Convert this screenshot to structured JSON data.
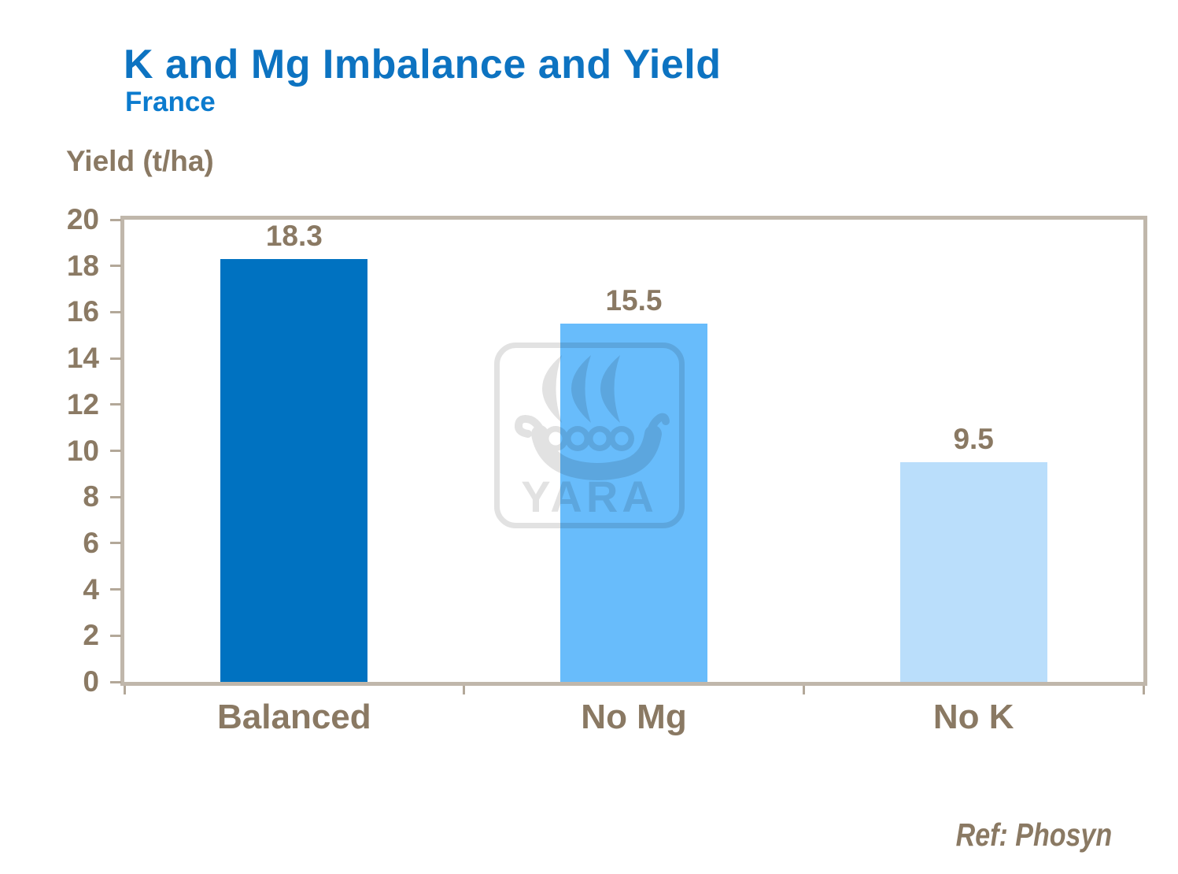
{
  "slide": {
    "title": "K and Mg Imbalance and Yield",
    "subtitle": "France",
    "ref_note": "Ref: Phosyn",
    "watermark_text": "YARA"
  },
  "chart_data": {
    "type": "bar",
    "title": "K and Mg Imbalance and Yield",
    "subtitle": "France",
    "axis_title": "Yield (t/ha)",
    "ylabel": "Yield (t/ha)",
    "xlabel": "",
    "categories": [
      "Balanced",
      "No Mg",
      "No K"
    ],
    "values": [
      18.3,
      15.5,
      9.5
    ],
    "value_labels": [
      "18.3",
      "15.5",
      "9.5"
    ],
    "bar_colors": [
      "#0072c1",
      "#68bcfb",
      "#badefb"
    ],
    "ylim": [
      0,
      20
    ],
    "yticks": [
      0,
      2,
      4,
      6,
      8,
      10,
      12,
      14,
      16,
      18,
      20
    ],
    "grid": false,
    "legend_position": "none"
  },
  "colors": {
    "title_blue": "#0d73c1",
    "subtitle_blue": "#0b7bce",
    "text_brown": "#8a7963",
    "plot_border_tan": "#c0b7ab",
    "tick_tan": "#b3a899",
    "watermark_gray": "#e2e2e2"
  }
}
